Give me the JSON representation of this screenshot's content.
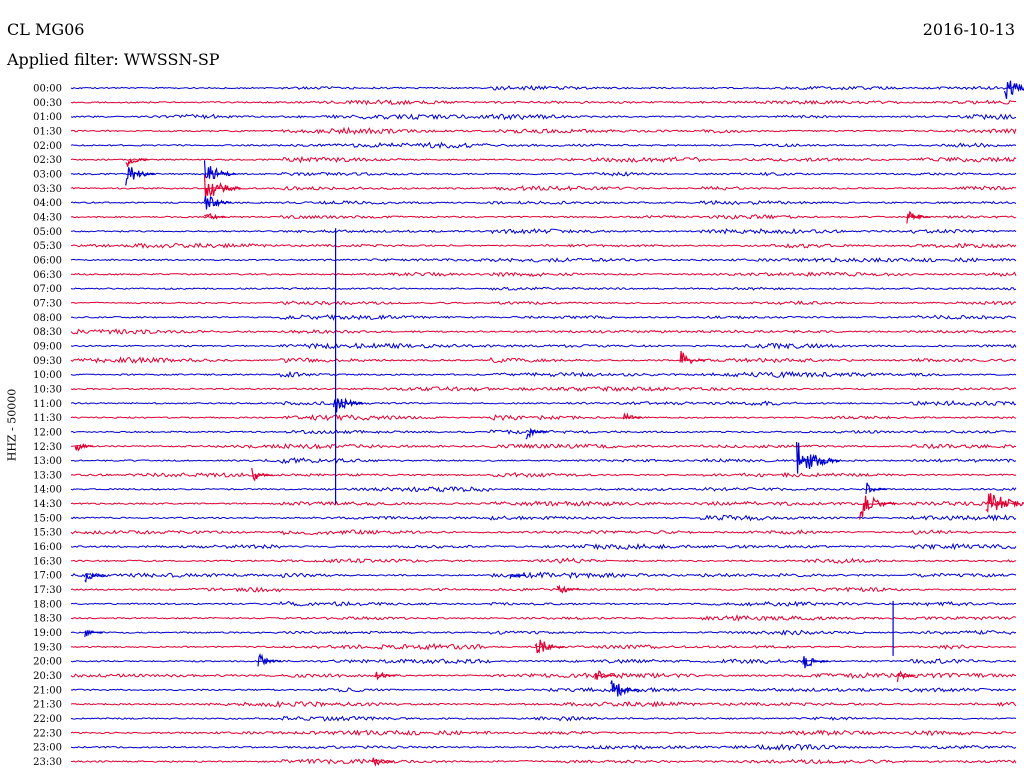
{
  "header": {
    "station": "CL MG06",
    "date": "2016-10-13",
    "filter": "Applied filter: WWSSN-SP"
  },
  "colors": {
    "even_rows": "#0000cc",
    "odd_rows": "#dd0033"
  },
  "chart_data": {
    "type": "line",
    "subtype": "helicorder",
    "ylabel": "HHZ - 50000",
    "rows": [
      "00:00",
      "00:30",
      "01:00",
      "01:30",
      "02:00",
      "02:30",
      "03:00",
      "03:30",
      "04:00",
      "04:30",
      "05:00",
      "05:30",
      "06:00",
      "06:30",
      "07:00",
      "07:30",
      "08:00",
      "08:30",
      "09:00",
      "09:30",
      "10:00",
      "10:30",
      "11:00",
      "11:30",
      "12:00",
      "12:30",
      "13:00",
      "13:30",
      "14:00",
      "14:30",
      "15:00",
      "15:30",
      "16:00",
      "16:30",
      "17:00",
      "17:30",
      "18:00",
      "18:30",
      "19:00",
      "19:30",
      "20:00",
      "20:30",
      "21:00",
      "21:30",
      "22:00",
      "22:30",
      "23:00",
      "23:30"
    ],
    "row_minutes": 30,
    "events": [
      {
        "row": "00:00",
        "minute": 29.7,
        "amplitude": 1.2
      },
      {
        "row": "02:30",
        "minute": 1.8,
        "amplitude": 0.7
      },
      {
        "row": "03:00",
        "minute": 1.8,
        "amplitude": 1.0
      },
      {
        "row": "03:00",
        "minute": 4.3,
        "amplitude": 1.1
      },
      {
        "row": "03:30",
        "minute": 4.3,
        "amplitude": 1.3
      },
      {
        "row": "04:00",
        "minute": 4.3,
        "amplitude": 0.9
      },
      {
        "row": "04:30",
        "minute": 4.3,
        "amplitude": 0.6
      },
      {
        "row": "04:30",
        "minute": 26.6,
        "amplitude": 0.7
      },
      {
        "row": "05:00",
        "minute": 8.4,
        "amplitude": 21.0
      },
      {
        "row": "09:30",
        "minute": 19.4,
        "amplitude": 0.8
      },
      {
        "row": "11:00",
        "minute": 8.4,
        "amplitude": 1.0
      },
      {
        "row": "11:30",
        "minute": 17.6,
        "amplitude": 0.5
      },
      {
        "row": "12:00",
        "minute": 14.5,
        "amplitude": 0.6
      },
      {
        "row": "12:30",
        "minute": 0.2,
        "amplitude": 0.5
      },
      {
        "row": "13:00",
        "minute": 23.1,
        "amplitude": 1.6
      },
      {
        "row": "13:30",
        "minute": 5.8,
        "amplitude": 0.6
      },
      {
        "row": "14:00",
        "minute": 25.3,
        "amplitude": 0.6
      },
      {
        "row": "14:30",
        "minute": 25.1,
        "amplitude": 1.3
      },
      {
        "row": "14:30",
        "minute": 29.1,
        "amplitude": 1.6
      },
      {
        "row": "17:00",
        "minute": 0.5,
        "amplitude": 0.6
      },
      {
        "row": "17:00",
        "minute": 14.0,
        "amplitude": 0.4
      },
      {
        "row": "17:30",
        "minute": 15.5,
        "amplitude": 0.6
      },
      {
        "row": "18:00",
        "minute": 26.1,
        "amplitude": 4.0
      },
      {
        "row": "19:00",
        "minute": 0.5,
        "amplitude": 0.5
      },
      {
        "row": "19:30",
        "minute": 14.8,
        "amplitude": 1.0
      },
      {
        "row": "20:00",
        "minute": 6.0,
        "amplitude": 0.7
      },
      {
        "row": "20:00",
        "minute": 23.3,
        "amplitude": 0.8
      },
      {
        "row": "20:30",
        "minute": 9.7,
        "amplitude": 0.6
      },
      {
        "row": "20:30",
        "minute": 16.7,
        "amplitude": 0.6
      },
      {
        "row": "20:30",
        "minute": 26.3,
        "amplitude": 0.5
      },
      {
        "row": "21:00",
        "minute": 17.2,
        "amplitude": 1.0
      },
      {
        "row": "23:30",
        "minute": 9.6,
        "amplitude": 0.6
      }
    ]
  }
}
